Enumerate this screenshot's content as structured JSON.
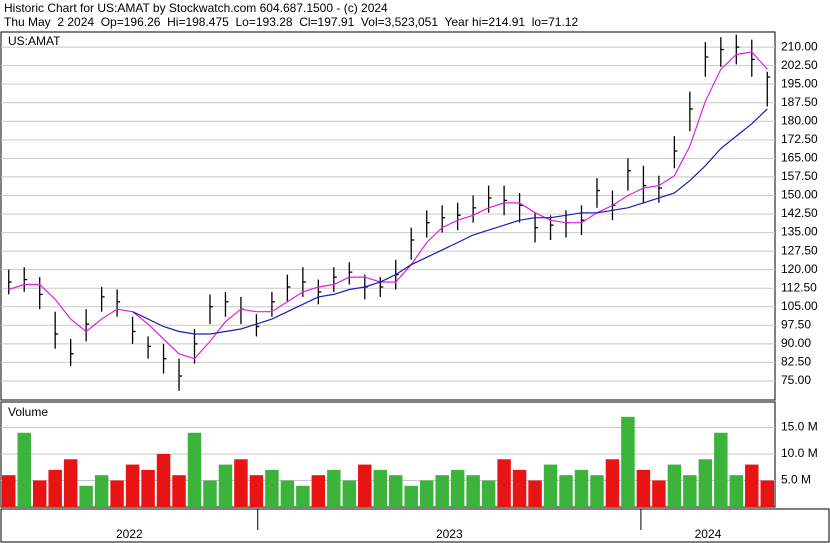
{
  "header": {
    "line1": "Historic Chart for US:AMAT by Stockwatch.com 604.687.1500 - (c) 2024",
    "line2": "Thu May  2 2024  Op=196.26  Hi=198.475  Lo=193.28  Cl=197.91  Vol=3,523,051  Year hi=214.91  lo=71.12"
  },
  "chart_data": [
    {
      "type": "ohlc",
      "title": "US:AMAT",
      "color": "#000000",
      "close": [
        115,
        116,
        110,
        94,
        86,
        98,
        109,
        107,
        95,
        89,
        84,
        77,
        90,
        105,
        107,
        104,
        97,
        107,
        113,
        115,
        111,
        117,
        119,
        113,
        113,
        118,
        132,
        139,
        141,
        142,
        145,
        149,
        148,
        146,
        137,
        138,
        139,
        140,
        152,
        146,
        160,
        154,
        153,
        168,
        185,
        206,
        209,
        210,
        205,
        197.91
      ],
      "high": [
        120,
        121,
        117,
        103,
        92,
        104,
        113,
        112,
        101,
        93,
        90,
        84,
        96,
        110,
        111,
        109,
        102,
        111,
        118,
        121,
        116,
        121,
        123,
        118,
        117,
        124,
        137,
        144,
        146,
        147,
        150,
        154,
        154,
        151,
        143,
        142,
        144,
        146,
        157,
        152,
        165,
        162,
        158,
        174,
        192,
        212,
        214,
        215,
        213,
        200
      ],
      "low": [
        110,
        111,
        104,
        88,
        81,
        91,
        103,
        101,
        90,
        84,
        78,
        71,
        82,
        98,
        101,
        98,
        93,
        101,
        107,
        109,
        106,
        111,
        114,
        108,
        109,
        112,
        124,
        133,
        135,
        136,
        139,
        143,
        142,
        139,
        131,
        132,
        133,
        134,
        145,
        140,
        152,
        147,
        147,
        161,
        176,
        198,
        202,
        203,
        198,
        186
      ],
      "moving_averages": [
        {
          "color": "#e020e0",
          "values": [
            112,
            114,
            114,
            108,
            100,
            95,
            100,
            104,
            103,
            98,
            92,
            86,
            84,
            91,
            99,
            104,
            103,
            103,
            107,
            111,
            113,
            114,
            117,
            117,
            115,
            115,
            122,
            131,
            137,
            140,
            142,
            145,
            147,
            147,
            143,
            140,
            139,
            139,
            143,
            146,
            150,
            153,
            154,
            158,
            170,
            188,
            201,
            207,
            208,
            201
          ]
        },
        {
          "color": "#1c1cb0",
          "values": [
            null,
            null,
            null,
            null,
            null,
            null,
            null,
            null,
            103,
            100,
            97,
            95,
            94,
            94,
            95,
            96,
            98,
            100,
            103,
            106,
            109,
            110,
            112,
            113,
            115,
            118,
            122,
            125,
            128,
            131,
            134,
            136,
            138,
            140,
            141,
            141,
            142,
            143,
            143,
            144,
            145,
            147,
            149,
            151,
            156,
            162,
            169,
            174,
            179,
            185
          ]
        }
      ],
      "ylim": [
        67.3,
        216.1
      ],
      "yticks": [
        {
          "value": 75,
          "label": "75.00"
        },
        {
          "value": 82.5,
          "label": "82.50"
        },
        {
          "value": 90,
          "label": "90.00"
        },
        {
          "value": 97.5,
          "label": "97.50"
        },
        {
          "value": 105,
          "label": "105.00"
        },
        {
          "value": 112.5,
          "label": "112.50"
        },
        {
          "value": 120,
          "label": "120.00"
        },
        {
          "value": 127.5,
          "label": "127.50"
        },
        {
          "value": 135,
          "label": "135.00"
        },
        {
          "value": 142.5,
          "label": "142.50"
        },
        {
          "value": 150,
          "label": "150.00"
        },
        {
          "value": 157.5,
          "label": "157.50"
        },
        {
          "value": 165,
          "label": "165.00"
        },
        {
          "value": 172.5,
          "label": "172.50"
        },
        {
          "value": 180,
          "label": "180.00"
        },
        {
          "value": 187.5,
          "label": "187.50"
        },
        {
          "value": 195,
          "label": "195.00"
        },
        {
          "value": 202.5,
          "label": "202.50"
        },
        {
          "value": 210,
          "label": "210.00"
        }
      ],
      "grid": true
    },
    {
      "type": "bar",
      "title": "Volume",
      "up_color": "#3cb43c",
      "down_color": "#e81414",
      "values": [
        6,
        14,
        5,
        7,
        9,
        4,
        6,
        5,
        8,
        7,
        10,
        6,
        14,
        5,
        8,
        9,
        6,
        7,
        5,
        4,
        6,
        7,
        5,
        8,
        7,
        6,
        4,
        5,
        6,
        7,
        6,
        5,
        9,
        7,
        5,
        8,
        6,
        7,
        6,
        9,
        17,
        7,
        5,
        8,
        6,
        9,
        14,
        6,
        8,
        5
      ],
      "ylim": [
        0,
        19.8
      ],
      "yticks": [
        {
          "value": 5,
          "label": "5.0 M"
        },
        {
          "value": 10,
          "label": "10.0 M"
        },
        {
          "value": 15,
          "label": "15.0 M"
        }
      ],
      "grid": true,
      "xlim": [
        2022.33,
        2024.35
      ],
      "x_labels": [
        "2022",
        "2023",
        "2024"
      ]
    }
  ]
}
